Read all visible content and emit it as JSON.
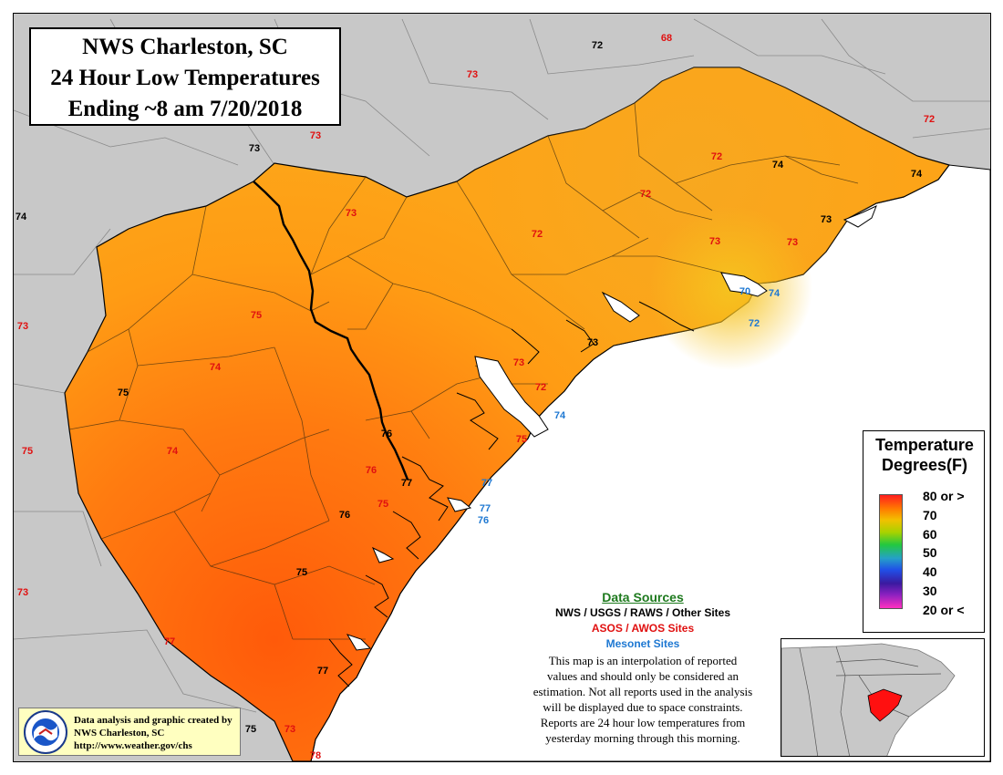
{
  "title": {
    "line1": "NWS Charleston, SC",
    "line2": "24 Hour Low Temperatures",
    "line3": "Ending ~8 am 7/20/2018"
  },
  "legend": {
    "title_line1": "Temperature",
    "title_line2": "Degrees(F)",
    "labels": [
      "80 or >",
      "70",
      "60",
      "50",
      "40",
      "30",
      "20 or <"
    ]
  },
  "colors": {
    "nws_sites": "#000000",
    "asos_sites": "#e01010",
    "mesonet_sites": "#1e78d2",
    "heading": "#1e7a1e"
  },
  "sources": {
    "heading": "Data Sources",
    "nws": "NWS / USGS / RAWS / Other Sites",
    "asos": "ASOS / AWOS Sites",
    "mesonet": "Mesonet Sites",
    "description": [
      "This map is an interpolation of reported",
      "values and should only be considered an",
      "estimation. Not all reports used in the analysis",
      "will be displayed due to space constraints.",
      "Reports are 24 hour low temperatures from",
      "yesterday morning through this morning."
    ]
  },
  "credit": {
    "line1": "Data analysis and graphic created by",
    "line2": "NWS Charleston, SC",
    "line3": "http://www.weather.gov/chs",
    "logo_text": "NATIONAL WEATHER SERVICE"
  },
  "observations": [
    {
      "value": "72",
      "type": "nws"
    },
    {
      "value": "68",
      "type": "asos"
    },
    {
      "value": "73",
      "type": "asos"
    },
    {
      "value": "72",
      "type": "asos"
    },
    {
      "value": "73",
      "type": "nws"
    },
    {
      "value": "73",
      "type": "asos"
    },
    {
      "value": "74",
      "type": "nws"
    },
    {
      "value": "73",
      "type": "asos"
    },
    {
      "value": "72",
      "type": "asos"
    },
    {
      "value": "74",
      "type": "nws"
    },
    {
      "value": "74",
      "type": "nws"
    },
    {
      "value": "72",
      "type": "asos"
    },
    {
      "value": "72",
      "type": "asos"
    },
    {
      "value": "73",
      "type": "nws"
    },
    {
      "value": "73",
      "type": "asos"
    },
    {
      "value": "73",
      "type": "asos"
    },
    {
      "value": "70",
      "type": "mesonet"
    },
    {
      "value": "74",
      "type": "mesonet"
    },
    {
      "value": "72",
      "type": "mesonet"
    },
    {
      "value": "73",
      "type": "asos"
    },
    {
      "value": "75",
      "type": "asos"
    },
    {
      "value": "73",
      "type": "nws"
    },
    {
      "value": "74",
      "type": "asos"
    },
    {
      "value": "73",
      "type": "asos"
    },
    {
      "value": "75",
      "type": "nws"
    },
    {
      "value": "72",
      "type": "asos"
    },
    {
      "value": "74",
      "type": "mesonet"
    },
    {
      "value": "75",
      "type": "asos"
    },
    {
      "value": "76",
      "type": "nws"
    },
    {
      "value": "74",
      "type": "asos"
    },
    {
      "value": "76",
      "type": "asos"
    },
    {
      "value": "77",
      "type": "nws"
    },
    {
      "value": "77",
      "type": "mesonet"
    },
    {
      "value": "75",
      "type": "asos"
    },
    {
      "value": "76",
      "type": "nws"
    },
    {
      "value": "77",
      "type": "mesonet"
    },
    {
      "value": "76",
      "type": "mesonet"
    },
    {
      "value": "75",
      "type": "asos"
    },
    {
      "value": "75",
      "type": "nws"
    },
    {
      "value": "73",
      "type": "asos"
    },
    {
      "value": "77",
      "type": "asos"
    },
    {
      "value": "77",
      "type": "nws"
    },
    {
      "value": "75",
      "type": "nws"
    },
    {
      "value": "73",
      "type": "asos"
    },
    {
      "value": "78",
      "type": "asos"
    }
  ]
}
